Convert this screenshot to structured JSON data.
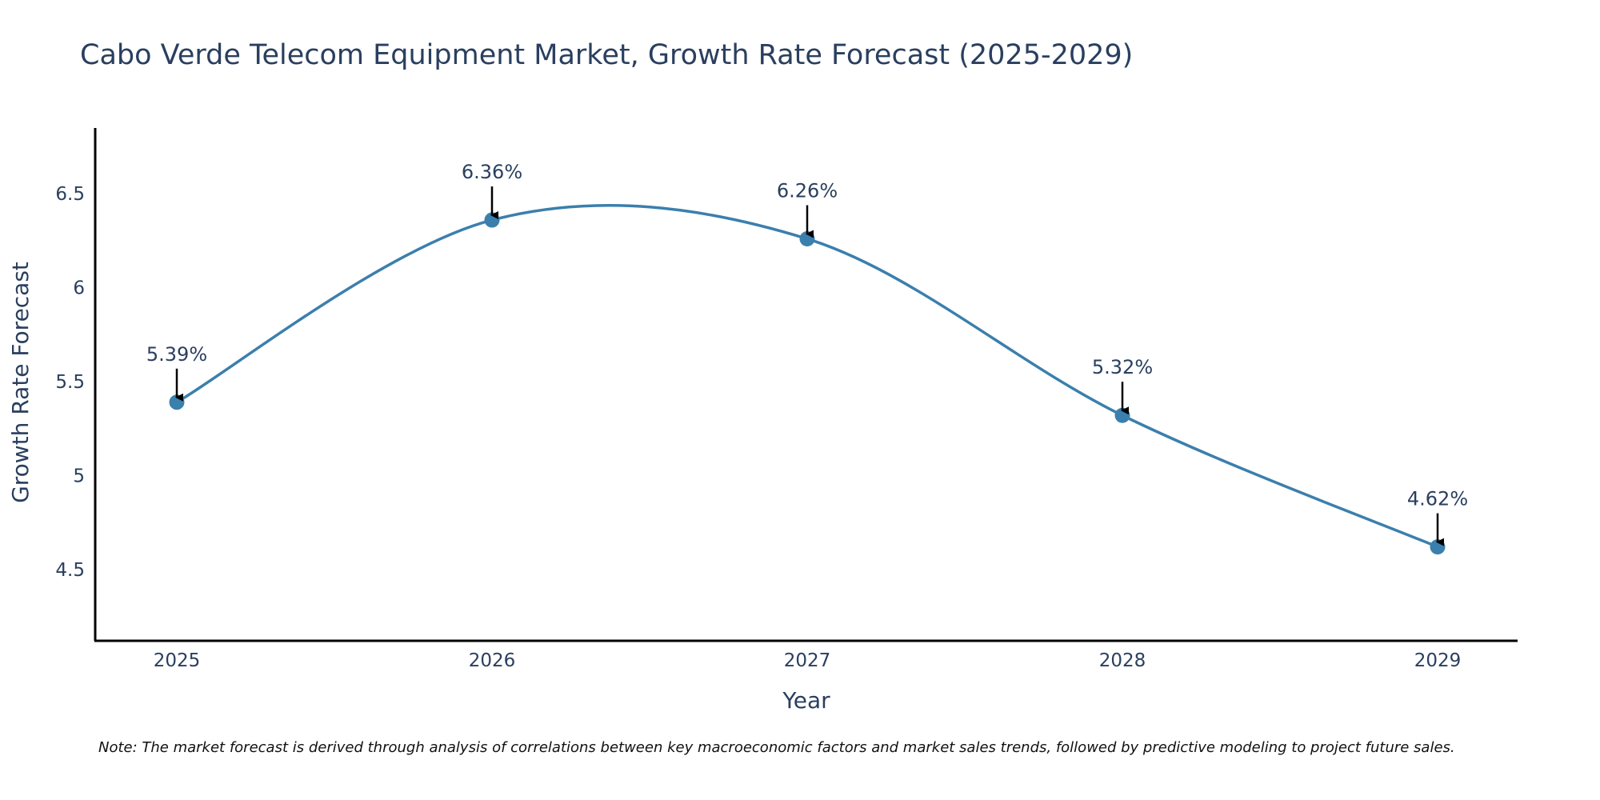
{
  "chart_data": {
    "type": "line",
    "title": "Cabo Verde Telecom Equipment Market, Growth Rate Forecast (2025-2029)",
    "xlabel": "Year",
    "ylabel": "Growth Rate Forecast",
    "categories": [
      "2025",
      "2026",
      "2027",
      "2028",
      "2029"
    ],
    "values": [
      5.39,
      6.36,
      6.26,
      5.32,
      4.62
    ],
    "data_labels": [
      "5.39%",
      "6.36%",
      "6.26%",
      "5.32%",
      "4.62%"
    ],
    "y_ticks": [
      4.5,
      5,
      5.5,
      6,
      6.5
    ],
    "y_tick_labels": [
      "4.5",
      "5",
      "5.5",
      "6",
      "6.5"
    ],
    "ylim": [
      4.12,
      6.85
    ],
    "grid": false,
    "line_color": "#3b7fad",
    "marker_color": "#3b7fad",
    "note": "Note: The market forecast is derived through analysis of correlations between key macroeconomic factors and market sales trends, followed by predictive modeling to project future sales."
  }
}
